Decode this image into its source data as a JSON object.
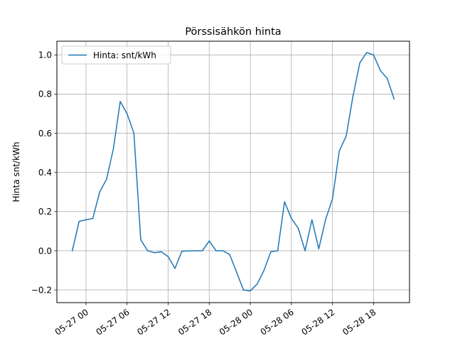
{
  "chart_data": {
    "type": "line",
    "title": "Pörssisähkön hinta",
    "xlabel": "",
    "ylabel": "Hinta snt/kWh",
    "x_ticks": [
      "05-27 00",
      "05-27 06",
      "05-27 12",
      "05-27 18",
      "05-28 00",
      "05-28 06",
      "05-28 12",
      "05-28 18"
    ],
    "x_tick_values": [
      "2023-05-27 00:00",
      "2023-05-27 06:00",
      "2023-05-27 12:00",
      "2023-05-27 18:00",
      "2023-05-28 00:00",
      "2023-05-28 06:00",
      "2023-05-28 12:00",
      "2023-05-28 18:00"
    ],
    "xlim": [
      "2023-05-26 19:45",
      "2023-05-28 23:15"
    ],
    "y_ticks": [
      "−0.2",
      "0.0",
      "0.2",
      "0.4",
      "0.6",
      "0.8",
      "1.0"
    ],
    "y_tick_values": [
      -0.2,
      0.0,
      0.2,
      0.4,
      0.6,
      0.8,
      1.0
    ],
    "ylim": [
      -0.265,
      1.07
    ],
    "grid": true,
    "legend_position": "top-left",
    "colors": {
      "series": "#1f77b4",
      "grid": "#b0b0b0"
    },
    "series": [
      {
        "name": "Hinta: snt/kWh",
        "x": [
          "2023-05-26 22:00",
          "2023-05-26 23:00",
          "2023-05-27 00:00",
          "2023-05-27 01:00",
          "2023-05-27 02:00",
          "2023-05-27 03:00",
          "2023-05-27 04:00",
          "2023-05-27 05:00",
          "2023-05-27 06:00",
          "2023-05-27 07:00",
          "2023-05-27 08:00",
          "2023-05-27 09:00",
          "2023-05-27 10:00",
          "2023-05-27 11:00",
          "2023-05-27 12:00",
          "2023-05-27 13:00",
          "2023-05-27 14:00",
          "2023-05-27 15:00",
          "2023-05-27 16:00",
          "2023-05-27 17:00",
          "2023-05-27 18:00",
          "2023-05-27 19:00",
          "2023-05-27 20:00",
          "2023-05-27 21:00",
          "2023-05-27 22:00",
          "2023-05-27 23:00",
          "2023-05-28 00:00",
          "2023-05-28 01:00",
          "2023-05-28 02:00",
          "2023-05-28 03:00",
          "2023-05-28 04:00",
          "2023-05-28 05:00",
          "2023-05-28 06:00",
          "2023-05-28 07:00",
          "2023-05-28 08:00",
          "2023-05-28 09:00",
          "2023-05-28 10:00",
          "2023-05-28 11:00",
          "2023-05-28 12:00",
          "2023-05-28 13:00",
          "2023-05-28 14:00",
          "2023-05-28 15:00",
          "2023-05-28 16:00",
          "2023-05-28 17:00",
          "2023-05-28 18:00",
          "2023-05-28 19:00",
          "2023-05-28 20:00",
          "2023-05-28 21:00"
        ],
        "y": [
          0.0,
          0.15,
          0.158,
          0.165,
          0.3,
          0.365,
          0.52,
          0.762,
          0.7,
          0.6,
          0.056,
          0.0,
          -0.01,
          -0.005,
          -0.03,
          -0.09,
          -0.003,
          0.0,
          0.0,
          0.0,
          0.05,
          0.0,
          0.0,
          -0.02,
          -0.11,
          -0.2,
          -0.205,
          -0.17,
          -0.1,
          -0.005,
          0.0,
          0.25,
          0.165,
          0.115,
          0.0,
          0.158,
          0.01,
          0.16,
          0.265,
          0.51,
          0.585,
          0.79,
          0.96,
          1.012,
          1.0,
          0.92,
          0.88,
          0.775
        ]
      }
    ]
  }
}
